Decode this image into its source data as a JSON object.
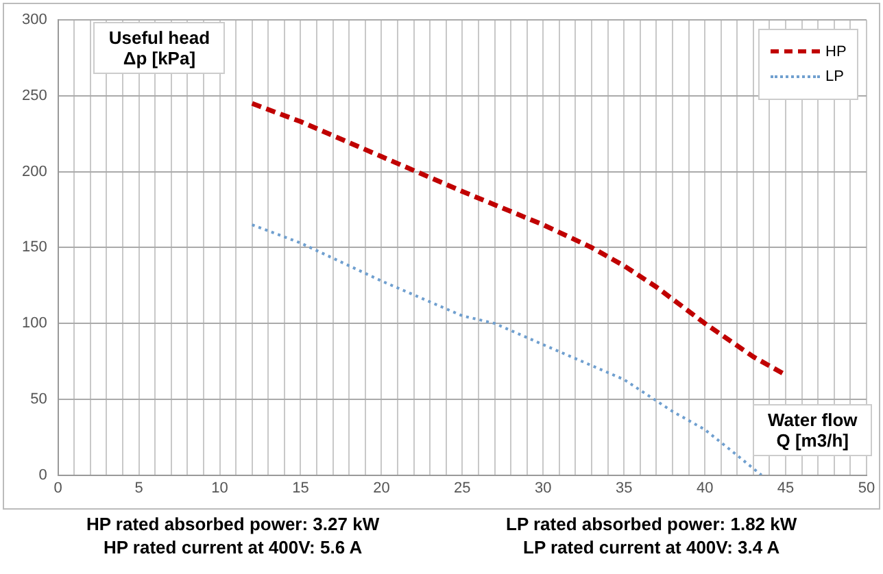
{
  "chart_data": {
    "type": "line",
    "xlabel": "Water flow\nQ [m3/h]",
    "ylabel": "Useful head\nΔp [kPa]",
    "series": [
      {
        "name": "HP",
        "color": "#c00000",
        "line_style": "dashed",
        "x": [
          12,
          15,
          20,
          25,
          30,
          33,
          35,
          37,
          40,
          43,
          45
        ],
        "values": [
          245,
          233,
          210,
          187,
          165,
          150,
          138,
          124,
          100,
          78,
          66
        ]
      },
      {
        "name": "LP",
        "color": "#6f9fcf",
        "line_style": "dotted",
        "x": [
          12,
          15,
          20,
          25,
          27,
          30,
          35,
          38,
          40,
          42,
          43.5
        ],
        "values": [
          165,
          153,
          128,
          105,
          100,
          86,
          63,
          42,
          30,
          13,
          0
        ]
      }
    ],
    "xlim": [
      0,
      50
    ],
    "xticks": [
      0,
      {
        "value": 1,
        "label": null
      },
      {
        "value": 2,
        "label": null
      },
      {
        "value": 3,
        "label": null
      },
      {
        "value": 4,
        "label": null
      },
      5,
      {
        "value": 6,
        "label": null
      },
      {
        "value": 7,
        "label": null
      },
      {
        "value": 8,
        "label": null
      },
      {
        "value": 9,
        "label": null
      },
      10,
      {
        "value": 11,
        "label": null
      },
      {
        "value": 12,
        "label": null
      },
      {
        "value": 13,
        "label": null
      },
      {
        "value": 14,
        "label": null
      },
      15,
      {
        "value": 16,
        "label": null
      },
      {
        "value": 17,
        "label": null
      },
      {
        "value": 18,
        "label": null
      },
      {
        "value": 19,
        "label": null
      },
      20,
      {
        "value": 21,
        "label": null
      },
      {
        "value": 22,
        "label": null
      },
      {
        "value": 23,
        "label": null
      },
      {
        "value": 24,
        "label": null
      },
      25,
      {
        "value": 26,
        "label": null
      },
      {
        "value": 27,
        "label": null
      },
      {
        "value": 28,
        "label": null
      },
      {
        "value": 29,
        "label": null
      },
      30,
      {
        "value": 31,
        "label": null
      },
      {
        "value": 32,
        "label": null
      },
      {
        "value": 33,
        "label": null
      },
      {
        "value": 34,
        "label": null
      },
      35,
      {
        "value": 36,
        "label": null
      },
      {
        "value": 37,
        "label": null
      },
      {
        "value": 38,
        "label": null
      },
      {
        "value": 39,
        "label": null
      },
      40,
      {
        "value": 41,
        "label": null
      },
      {
        "value": 42,
        "label": null
      },
      {
        "value": 43,
        "label": null
      },
      {
        "value": 44,
        "label": null
      },
      45,
      {
        "value": 46,
        "label": null
      },
      {
        "value": 47,
        "label": null
      },
      {
        "value": 48,
        "label": null
      },
      {
        "value": 49,
        "label": null
      },
      50
    ],
    "ylim": [
      0,
      300
    ],
    "yticks": [
      0,
      50,
      100,
      150,
      200,
      250,
      300
    ],
    "grid": true,
    "legend": "top right",
    "marker": "none",
    "annotations": [
      "HP rated absorbed power: 3.27 kW\nHP rated current at 400V: 5.6 A",
      "LP rated absorbed power: 1.82 kW\nLP rated current at 400V: 3.4 A"
    ]
  }
}
